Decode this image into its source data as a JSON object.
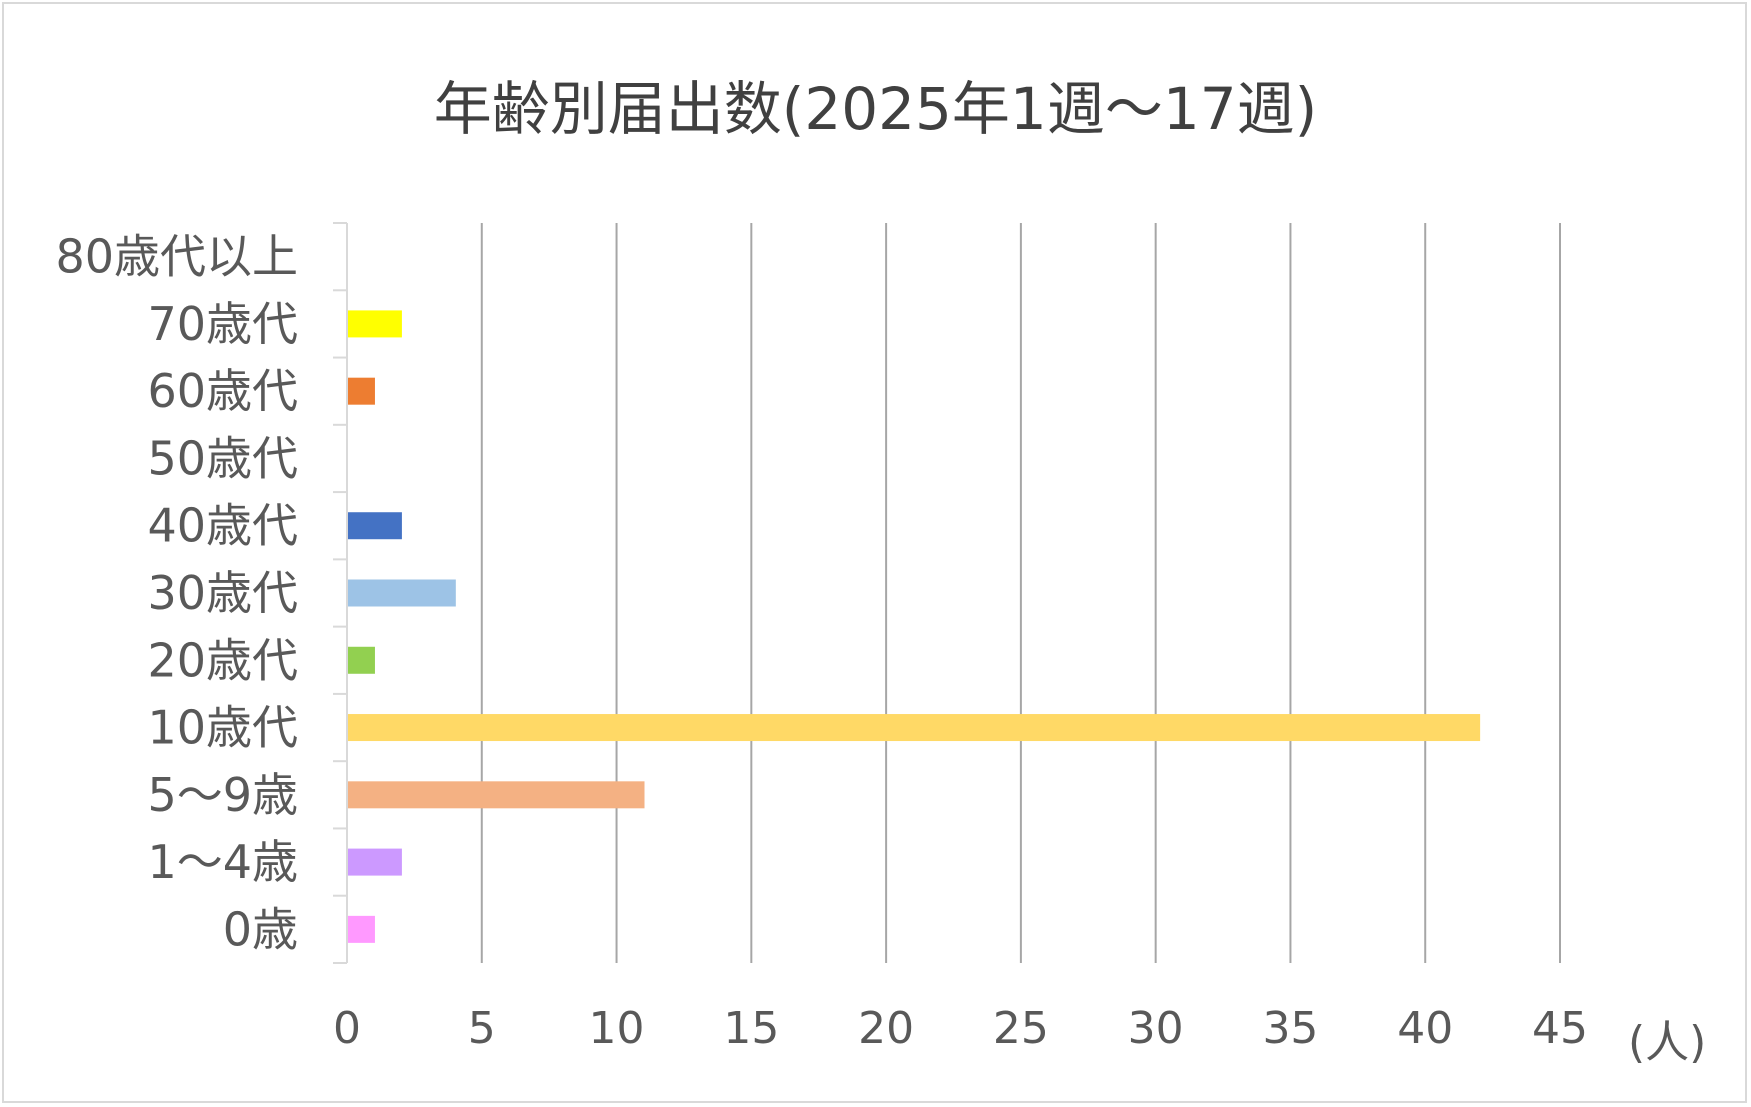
{
  "chart_data": {
    "type": "bar",
    "orientation": "horizontal",
    "title": "年齢別届出数(2025年1週～17週)",
    "unit": "(人)",
    "categories": [
      "0歳",
      "1～4歳",
      "5～9歳",
      "10歳代",
      "20歳代",
      "30歳代",
      "40歳代",
      "50歳代",
      "60歳代",
      "70歳代",
      "80歳代以上"
    ],
    "values": [
      1,
      2,
      11,
      42,
      1,
      4,
      2,
      0,
      1,
      2,
      0
    ],
    "bar_colors": [
      "#ff99ff",
      "#cc99ff",
      "#f4b183",
      "#ffd966",
      "#92d050",
      "#9dc3e6",
      "#4472c4",
      "#a5a5a5",
      "#ed7d31",
      "#ffff00",
      "#7f7f7f"
    ],
    "xlim": [
      0,
      45
    ],
    "xticks": [
      "0",
      "5",
      "10",
      "15",
      "20",
      "25",
      "30",
      "35",
      "40",
      "45"
    ],
    "grid": "vertical",
    "legend": "none"
  }
}
